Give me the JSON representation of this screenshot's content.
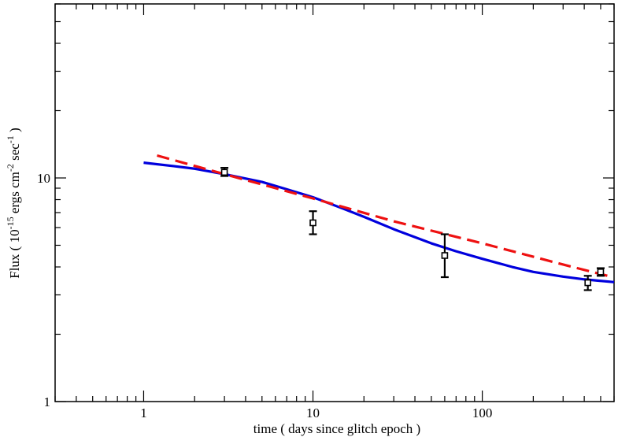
{
  "chart_data": {
    "type": "scatter",
    "xlabel": "time ( days since glitch epoch )",
    "ylabel": {
      "prefix": "Flux ( 10",
      "exp1": "-15",
      "mid": " ergs cm",
      "exp2": "-2",
      "mid2": " sec",
      "exp3": "-1",
      "suffix": " )"
    },
    "x_scale": "log",
    "y_scale": "log",
    "xlim": [
      0.3,
      600
    ],
    "ylim": [
      1,
      60
    ],
    "x_ticks": [
      {
        "value": 1,
        "label": "1"
      },
      {
        "value": 10,
        "label": "10"
      },
      {
        "value": 100,
        "label": "100"
      }
    ],
    "y_ticks": [
      {
        "value": 1,
        "label": "1"
      },
      {
        "value": 10,
        "label": "10"
      }
    ],
    "grid": false,
    "colors": {
      "data": "#000000",
      "solid": "#0000dd",
      "dashed": "#ee1111"
    },
    "series": [
      {
        "kind": "points-with-errorbars",
        "points": [
          {
            "x": 3,
            "y": 10.6,
            "low": 10.2,
            "high": 11.1
          },
          {
            "x": 10,
            "y": 6.3,
            "low": 5.6,
            "high": 7.1
          },
          {
            "x": 60,
            "y": 4.5,
            "low": 3.6,
            "high": 5.6
          },
          {
            "x": 420,
            "y": 3.4,
            "low": 3.15,
            "high": 3.65
          },
          {
            "x": 500,
            "y": 3.8,
            "low": 3.65,
            "high": 3.95
          }
        ]
      },
      {
        "kind": "line-solid",
        "x": [
          1,
          1.5,
          2,
          3,
          5,
          7,
          10,
          15,
          20,
          30,
          50,
          70,
          100,
          150,
          200,
          300,
          400,
          600
        ],
        "y": [
          11.7,
          11.3,
          11.0,
          10.4,
          9.6,
          8.9,
          8.2,
          7.3,
          6.7,
          5.9,
          5.1,
          4.7,
          4.35,
          4.0,
          3.8,
          3.62,
          3.52,
          3.42
        ]
      },
      {
        "kind": "line-dashed",
        "x": [
          1.2,
          3,
          10,
          30,
          100,
          300,
          550
        ],
        "y": [
          12.6,
          10.4,
          8.1,
          6.4,
          5.1,
          4.1,
          3.65
        ]
      }
    ]
  }
}
